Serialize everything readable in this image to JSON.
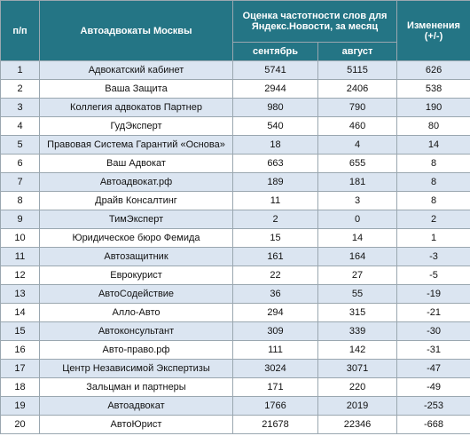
{
  "table": {
    "header": {
      "num": "п/п",
      "name": "Автоадвокаты Москвы",
      "freq": "Оценка частотности слов для Яндекс.Новости, за месяц",
      "change": "Изменения (+/-)",
      "sep": "сентябрь",
      "aug": "август"
    },
    "rows": [
      [
        1,
        "Адвокатский кабинет",
        5741,
        5115,
        626
      ],
      [
        2,
        "Ваша Защита",
        2944,
        2406,
        538
      ],
      [
        3,
        "Коллегия адвокатов Партнер",
        980,
        790,
        190
      ],
      [
        4,
        "ГудЭксперт",
        540,
        460,
        80
      ],
      [
        5,
        "Правовая Система Гарантий «Основа»",
        18,
        4,
        14
      ],
      [
        6,
        "Ваш Адвокат",
        663,
        655,
        8
      ],
      [
        7,
        "Автоадвокат.рф",
        189,
        181,
        8
      ],
      [
        8,
        "Драйв Консалтинг",
        11,
        3,
        8
      ],
      [
        9,
        "ТимЭксперт",
        2,
        0,
        2
      ],
      [
        10,
        "Юридическое бюро Фемида",
        15,
        14,
        1
      ],
      [
        11,
        "Автозащитник",
        161,
        164,
        -3
      ],
      [
        12,
        "Еврокурист",
        22,
        27,
        -5
      ],
      [
        13,
        "АвтоСодействие",
        36,
        55,
        -19
      ],
      [
        14,
        "Алло-Авто",
        294,
        315,
        -21
      ],
      [
        15,
        "Автоконсультант",
        309,
        339,
        -30
      ],
      [
        16,
        "Авто-право.рф",
        111,
        142,
        -31
      ],
      [
        17,
        "Центр Независимой Экспертизы",
        3024,
        3071,
        -47
      ],
      [
        18,
        "Зальцман и партнеры",
        171,
        220,
        -49
      ],
      [
        19,
        "Автоадвокат",
        1766,
        2019,
        -253
      ],
      [
        20,
        "АвтоЮрист",
        21678,
        22346,
        -668
      ]
    ]
  }
}
